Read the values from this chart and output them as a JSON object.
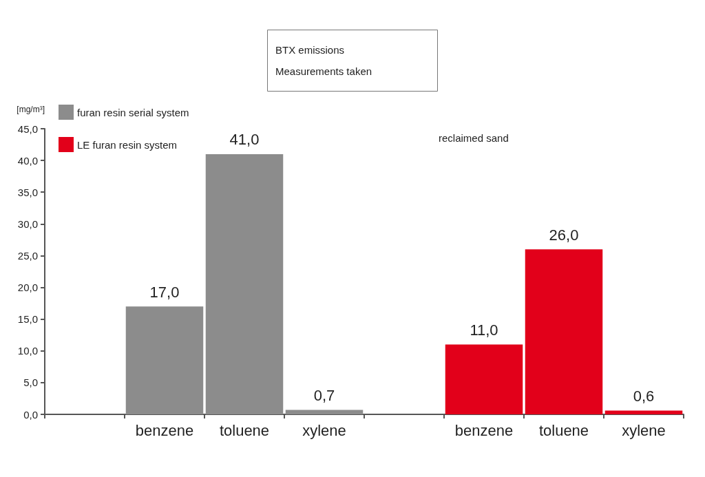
{
  "chart_data": {
    "type": "bar",
    "title": "BTX emissions",
    "subtitle": "Measurements taken",
    "ylabel": "[mg/m³]",
    "annotations": [
      "reclaimed sand"
    ],
    "categories": [
      null,
      "benzene",
      "toluene",
      "xylene",
      null,
      "benzene",
      "toluene",
      "xylene"
    ],
    "series": [
      {
        "name": "furan resin serial system",
        "color": "#8c8c8c",
        "values": [
          null,
          17,
          41,
          0.7,
          null,
          null,
          null,
          null
        ],
        "value_labels": [
          null,
          "17,0",
          "41,0",
          "0,7",
          null,
          null,
          null,
          null
        ]
      },
      {
        "name": "LE furan resin system",
        "color": "#e2001a",
        "values": [
          null,
          null,
          null,
          null,
          null,
          11,
          26,
          0.6
        ],
        "value_labels": [
          null,
          null,
          null,
          null,
          null,
          "11,0",
          "26,0",
          "0,6"
        ]
      }
    ],
    "ylim": [
      0,
      45
    ],
    "yticks": [
      {
        "value": 0,
        "label": "0,0"
      },
      {
        "value": 5,
        "label": "5,0"
      },
      {
        "value": 10,
        "label": "10,0"
      },
      {
        "value": 15,
        "label": "15,0"
      },
      {
        "value": 20,
        "label": "20,0"
      },
      {
        "value": 25,
        "label": "25,0"
      },
      {
        "value": 30,
        "label": "30,0"
      },
      {
        "value": 35,
        "label": "35,0"
      },
      {
        "value": 40,
        "label": "40,0"
      },
      {
        "value": 45,
        "label": "45,0"
      }
    ],
    "grid": false,
    "legend": "top left"
  }
}
